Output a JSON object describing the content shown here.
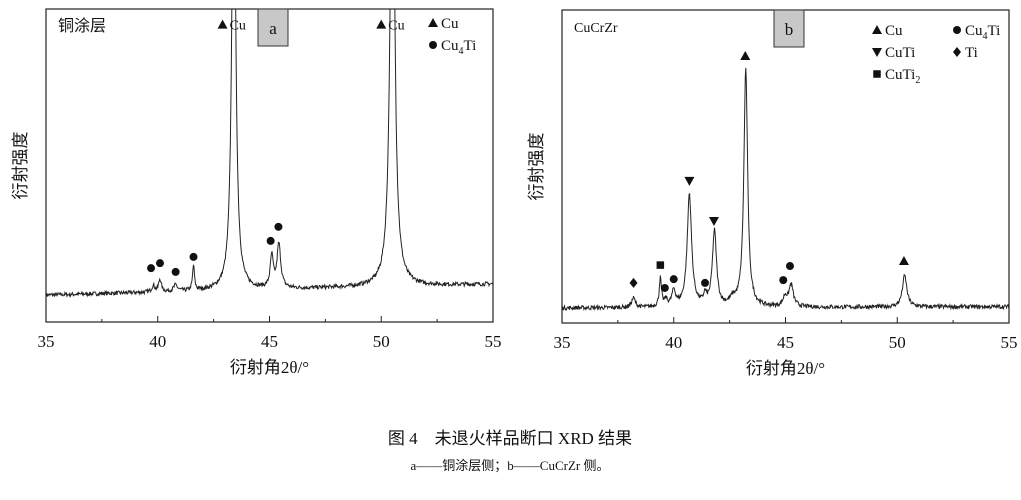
{
  "chart_data": [
    {
      "panel": "a",
      "type": "line",
      "sample_label": "铜涂层",
      "xlabel": "衍射角2θ/°",
      "ylabel": "衍射强度",
      "xlim": [
        35,
        55
      ],
      "ylim": [
        0,
        100
      ],
      "xticks": [
        35,
        40,
        45,
        50,
        55
      ],
      "yticks": [],
      "grid": false,
      "baseline": [
        8.6,
        12.1
      ],
      "peaks": [
        {
          "x": 39.8,
          "h": 2,
          "w": 0.08
        },
        {
          "x": 40.1,
          "h": 4,
          "w": 0.07
        },
        {
          "x": 40.8,
          "h": 2,
          "w": 0.1
        },
        {
          "x": 41.6,
          "h": 8,
          "w": 0.05
        },
        {
          "x": 43.4,
          "h": 160,
          "w": 0.1
        },
        {
          "x": 45.1,
          "h": 10,
          "w": 0.08
        },
        {
          "x": 45.42,
          "h": 14,
          "w": 0.1
        },
        {
          "x": 50.5,
          "h": 160,
          "w": 0.12
        }
      ],
      "legend": {
        "position": "top-right",
        "entries": [
          {
            "marker": "triangle-up",
            "label": "Cu",
            "sub": ""
          },
          {
            "marker": "circle",
            "label": "Cu",
            "sub": "4",
            "suffix": "Ti"
          }
        ]
      },
      "annotations": [
        {
          "marker": "circle",
          "x": 39.7,
          "y": 17.2
        },
        {
          "marker": "circle",
          "x": 40.1,
          "y": 18.8
        },
        {
          "marker": "circle",
          "x": 40.8,
          "y": 16
        },
        {
          "marker": "circle",
          "x": 41.6,
          "y": 20.8
        },
        {
          "marker": "circle",
          "x": 45.05,
          "y": 25.9
        },
        {
          "marker": "circle",
          "x": 45.4,
          "y": 30.4
        },
        {
          "marker": "triangle-up",
          "x": 42.9,
          "y": 95,
          "text": "Cu"
        },
        {
          "marker": "triangle-up",
          "x": 50.0,
          "y": 95,
          "text": "Cu"
        }
      ]
    },
    {
      "panel": "b",
      "type": "line",
      "sample_label": "CuCrZr",
      "xlabel": "衍射角2θ/°",
      "ylabel": "衍射强度",
      "xlim": [
        35,
        55
      ],
      "ylim": [
        0,
        100
      ],
      "xticks": [
        35,
        40,
        45,
        50,
        55
      ],
      "yticks": [],
      "grid": false,
      "baseline": [
        4.8,
        5.2
      ],
      "peaks": [
        {
          "x": 38.2,
          "h": 3,
          "w": 0.1
        },
        {
          "x": 39.4,
          "h": 9,
          "w": 0.06
        },
        {
          "x": 39.65,
          "h": 2,
          "w": 0.08
        },
        {
          "x": 40.0,
          "h": 5,
          "w": 0.1
        },
        {
          "x": 40.7,
          "h": 36,
          "w": 0.12
        },
        {
          "x": 41.4,
          "h": 3,
          "w": 0.08
        },
        {
          "x": 41.82,
          "h": 24,
          "w": 0.11
        },
        {
          "x": 42.65,
          "h": 2,
          "w": 0.15
        },
        {
          "x": 43.22,
          "h": 76,
          "w": 0.1
        },
        {
          "x": 44.98,
          "h": 3,
          "w": 0.1
        },
        {
          "x": 45.25,
          "h": 7,
          "w": 0.12
        },
        {
          "x": 50.33,
          "h": 10,
          "w": 0.12
        }
      ],
      "legend": {
        "position": "top-right",
        "entries": [
          {
            "marker": "triangle-up",
            "label": "Cu",
            "sub": ""
          },
          {
            "marker": "circle",
            "label": "Cu",
            "sub": "4",
            "suffix": "Ti"
          },
          {
            "marker": "triangle-down",
            "label": "CuTi",
            "sub": ""
          },
          {
            "marker": "diamond",
            "label": "Ti",
            "sub": ""
          },
          {
            "marker": "square",
            "label": "CuTi",
            "sub": "2"
          }
        ]
      },
      "annotations": [
        {
          "marker": "diamond",
          "x": 38.2,
          "y": 12.8
        },
        {
          "marker": "square",
          "x": 39.4,
          "y": 18.5
        },
        {
          "marker": "circle",
          "x": 39.6,
          "y": 11.2
        },
        {
          "marker": "circle",
          "x": 40.0,
          "y": 14
        },
        {
          "marker": "triangle-down",
          "x": 40.7,
          "y": 45.4
        },
        {
          "marker": "circle",
          "x": 41.4,
          "y": 12.8
        },
        {
          "marker": "triangle-down",
          "x": 41.8,
          "y": 32.6
        },
        {
          "marker": "triangle-up",
          "x": 43.2,
          "y": 85.3
        },
        {
          "marker": "circle",
          "x": 44.9,
          "y": 13.7
        },
        {
          "marker": "circle",
          "x": 45.2,
          "y": 18.2
        },
        {
          "marker": "triangle-up",
          "x": 50.3,
          "y": 19.8
        }
      ]
    }
  ],
  "caption": {
    "title": "图 4　未退火样品断口 XRD 结果",
    "note": "a——铜涂层侧；b——CuCrZr 侧。"
  }
}
